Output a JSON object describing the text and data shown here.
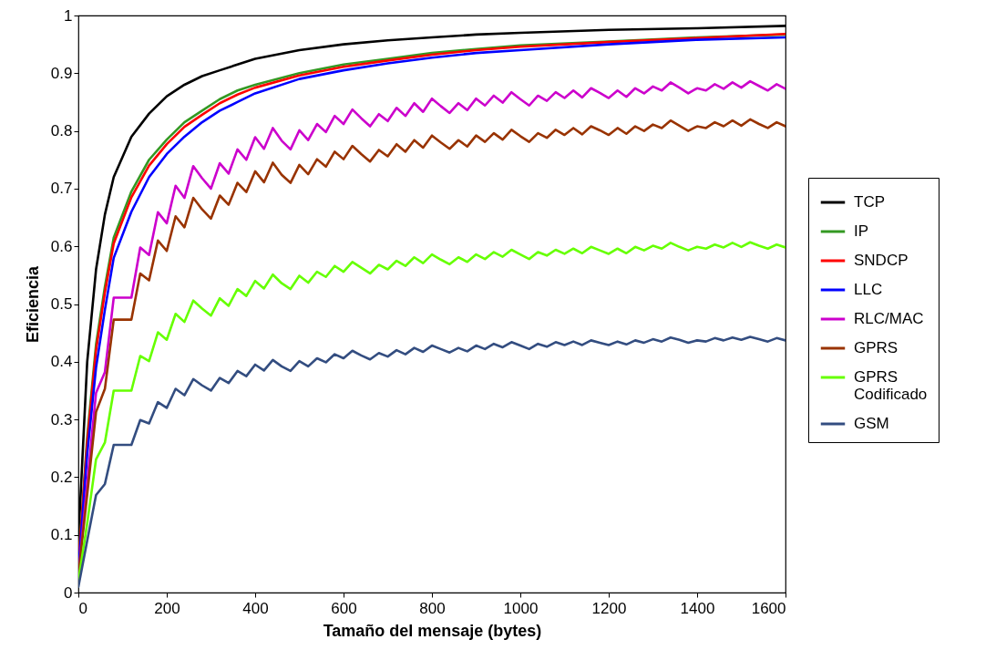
{
  "chart_data": {
    "type": "line",
    "xlabel": "Tamaño del mensaje (bytes)",
    "ylabel": "Eficiencia",
    "xlim": [
      0,
      1600
    ],
    "xticks": [
      0,
      200,
      400,
      600,
      800,
      1000,
      1200,
      1400,
      1600
    ],
    "ylim": [
      0,
      1
    ],
    "yticks": [
      0,
      0.1,
      0.2,
      0.3,
      0.4,
      0.5,
      0.6,
      0.7,
      0.8,
      0.9,
      1
    ],
    "legend": "right",
    "series": [
      {
        "name": "TCP",
        "color": "#000000",
        "x": [
          0,
          20,
          40,
          60,
          80,
          120,
          160,
          200,
          240,
          280,
          320,
          360,
          400,
          500,
          600,
          700,
          800,
          900,
          1000,
          1200,
          1400,
          1600
        ],
        "values": [
          0.09,
          0.4,
          0.56,
          0.655,
          0.72,
          0.79,
          0.83,
          0.86,
          0.88,
          0.895,
          0.905,
          0.915,
          0.925,
          0.94,
          0.95,
          0.957,
          0.962,
          0.967,
          0.97,
          0.975,
          0.978,
          0.982
        ]
      },
      {
        "name": "IP",
        "color": "#339922",
        "x": [
          0,
          20,
          40,
          60,
          80,
          120,
          160,
          200,
          240,
          280,
          320,
          360,
          400,
          500,
          600,
          700,
          800,
          900,
          1000,
          1200,
          1400,
          1600
        ],
        "values": [
          0.05,
          0.27,
          0.43,
          0.53,
          0.615,
          0.695,
          0.75,
          0.785,
          0.815,
          0.835,
          0.855,
          0.87,
          0.88,
          0.9,
          0.915,
          0.925,
          0.935,
          0.942,
          0.948,
          0.955,
          0.962,
          0.967
        ]
      },
      {
        "name": "SNDCP",
        "color": "#ff0000",
        "x": [
          0,
          20,
          40,
          60,
          80,
          120,
          160,
          200,
          240,
          280,
          320,
          360,
          400,
          500,
          600,
          700,
          800,
          900,
          1000,
          1200,
          1400,
          1600
        ],
        "values": [
          0.05,
          0.26,
          0.42,
          0.52,
          0.605,
          0.685,
          0.74,
          0.777,
          0.807,
          0.828,
          0.848,
          0.863,
          0.875,
          0.896,
          0.911,
          0.922,
          0.932,
          0.94,
          0.946,
          0.954,
          0.961,
          0.968
        ]
      },
      {
        "name": "LLC",
        "color": "#0000ff",
        "x": [
          0,
          20,
          40,
          60,
          80,
          120,
          160,
          200,
          240,
          280,
          320,
          360,
          400,
          500,
          600,
          700,
          800,
          900,
          1000,
          1200,
          1400,
          1600
        ],
        "values": [
          0.04,
          0.24,
          0.39,
          0.49,
          0.58,
          0.66,
          0.72,
          0.76,
          0.79,
          0.815,
          0.835,
          0.85,
          0.865,
          0.89,
          0.905,
          0.917,
          0.927,
          0.935,
          0.94,
          0.95,
          0.958,
          0.962
        ]
      },
      {
        "name": "RLC/MAC",
        "color": "#cc00cc",
        "values": [
          0.03,
          0.19,
          0.346,
          0.382,
          0.511,
          0.511,
          0.511,
          0.598,
          0.585,
          0.659,
          0.64,
          0.705,
          0.684,
          0.739,
          0.718,
          0.7,
          0.744,
          0.726,
          0.768,
          0.75,
          0.789,
          0.769,
          0.805,
          0.783,
          0.768,
          0.801,
          0.784,
          0.812,
          0.798,
          0.826,
          0.812,
          0.837,
          0.822,
          0.808,
          0.829,
          0.817,
          0.84,
          0.826,
          0.848,
          0.833,
          0.856,
          0.843,
          0.831,
          0.848,
          0.836,
          0.856,
          0.844,
          0.861,
          0.849,
          0.867,
          0.855,
          0.844,
          0.861,
          0.852,
          0.867,
          0.857,
          0.87,
          0.858,
          0.874,
          0.866,
          0.857,
          0.87,
          0.859,
          0.874,
          0.865,
          0.877,
          0.87,
          0.884,
          0.875,
          0.865,
          0.874,
          0.87,
          0.881,
          0.873,
          0.884,
          0.875,
          0.886,
          0.878,
          0.87,
          0.881,
          0.873
        ]
      },
      {
        "name": "GPRS",
        "color": "#993300",
        "values": [
          0.03,
          0.17,
          0.313,
          0.353,
          0.473,
          0.473,
          0.473,
          0.553,
          0.541,
          0.61,
          0.592,
          0.652,
          0.633,
          0.684,
          0.664,
          0.648,
          0.688,
          0.672,
          0.71,
          0.694,
          0.73,
          0.711,
          0.745,
          0.724,
          0.71,
          0.741,
          0.725,
          0.751,
          0.738,
          0.764,
          0.751,
          0.774,
          0.76,
          0.747,
          0.767,
          0.756,
          0.777,
          0.764,
          0.784,
          0.771,
          0.792,
          0.78,
          0.769,
          0.784,
          0.773,
          0.792,
          0.781,
          0.796,
          0.785,
          0.802,
          0.791,
          0.781,
          0.796,
          0.788,
          0.802,
          0.793,
          0.805,
          0.794,
          0.808,
          0.801,
          0.793,
          0.805,
          0.795,
          0.808,
          0.8,
          0.811,
          0.805,
          0.818,
          0.809,
          0.8,
          0.808,
          0.805,
          0.815,
          0.808,
          0.818,
          0.809,
          0.82,
          0.812,
          0.805,
          0.815,
          0.808
        ]
      },
      {
        "name": "GPRS Codificado",
        "color": "#66ff00",
        "values": [
          0.02,
          0.12,
          0.231,
          0.26,
          0.35,
          0.35,
          0.35,
          0.41,
          0.401,
          0.451,
          0.438,
          0.483,
          0.469,
          0.506,
          0.492,
          0.48,
          0.51,
          0.497,
          0.526,
          0.514,
          0.54,
          0.527,
          0.551,
          0.536,
          0.526,
          0.549,
          0.537,
          0.556,
          0.547,
          0.566,
          0.556,
          0.573,
          0.563,
          0.553,
          0.568,
          0.56,
          0.575,
          0.566,
          0.581,
          0.571,
          0.586,
          0.577,
          0.569,
          0.581,
          0.573,
          0.586,
          0.578,
          0.59,
          0.582,
          0.594,
          0.586,
          0.578,
          0.59,
          0.584,
          0.594,
          0.587,
          0.596,
          0.588,
          0.599,
          0.593,
          0.587,
          0.596,
          0.588,
          0.599,
          0.593,
          0.601,
          0.596,
          0.606,
          0.599,
          0.593,
          0.599,
          0.596,
          0.603,
          0.598,
          0.606,
          0.599,
          0.607,
          0.601,
          0.596,
          0.603,
          0.598
        ]
      },
      {
        "name": "GSM",
        "color": "#334d80",
        "values": [
          0.01,
          0.09,
          0.169,
          0.188,
          0.256,
          0.256,
          0.256,
          0.299,
          0.293,
          0.33,
          0.32,
          0.353,
          0.342,
          0.37,
          0.359,
          0.35,
          0.372,
          0.363,
          0.384,
          0.375,
          0.395,
          0.385,
          0.403,
          0.392,
          0.384,
          0.401,
          0.392,
          0.406,
          0.399,
          0.413,
          0.406,
          0.419,
          0.411,
          0.404,
          0.415,
          0.409,
          0.42,
          0.413,
          0.424,
          0.417,
          0.428,
          0.422,
          0.416,
          0.424,
          0.418,
          0.428,
          0.422,
          0.431,
          0.425,
          0.434,
          0.428,
          0.422,
          0.431,
          0.426,
          0.434,
          0.429,
          0.435,
          0.429,
          0.437,
          0.433,
          0.429,
          0.435,
          0.43,
          0.437,
          0.433,
          0.439,
          0.435,
          0.442,
          0.438,
          0.433,
          0.437,
          0.435,
          0.441,
          0.437,
          0.442,
          0.438,
          0.443,
          0.439,
          0.435,
          0.441,
          0.437
        ]
      }
    ],
    "x": [
      0,
      20,
      40,
      60,
      80,
      100,
      120,
      140,
      160,
      180,
      200,
      220,
      240,
      260,
      280,
      300,
      320,
      340,
      360,
      380,
      400,
      420,
      440,
      460,
      480,
      500,
      520,
      540,
      560,
      580,
      600,
      620,
      640,
      660,
      680,
      700,
      720,
      740,
      760,
      780,
      800,
      820,
      840,
      860,
      880,
      900,
      920,
      940,
      960,
      980,
      1000,
      1020,
      1040,
      1060,
      1080,
      1100,
      1120,
      1140,
      1160,
      1180,
      1200,
      1220,
      1240,
      1260,
      1280,
      1300,
      1320,
      1340,
      1360,
      1380,
      1400,
      1420,
      1440,
      1460,
      1480,
      1500,
      1520,
      1540,
      1560,
      1580,
      1600
    ]
  }
}
